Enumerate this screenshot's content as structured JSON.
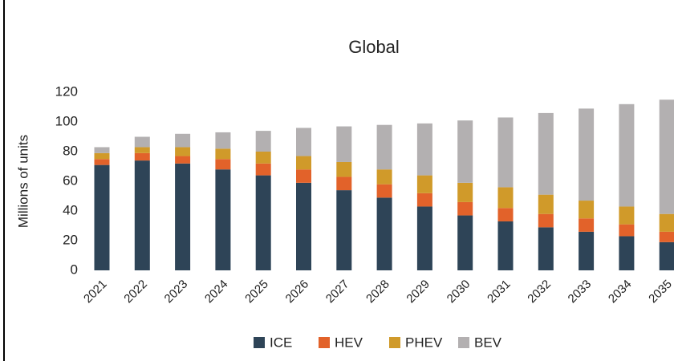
{
  "chart_data": {
    "type": "stacked_bar",
    "title": "Global",
    "y_label": "Millions of units",
    "categories": [
      "2021",
      "2022",
      "2023",
      "2024",
      "2025",
      "2026",
      "2027",
      "2028",
      "2029",
      "2030",
      "2031",
      "2032",
      "2033",
      "2034",
      "2035"
    ],
    "series": [
      {
        "name": "ICE",
        "color": "#2e4457",
        "values": [
          71,
          74,
          72,
          68,
          64,
          59,
          54,
          49,
          43,
          37,
          33,
          29,
          26,
          23,
          19
        ]
      },
      {
        "name": "HEV",
        "color": "#e2622a",
        "values": [
          4,
          5,
          5,
          7,
          8,
          9,
          9,
          9,
          9,
          9,
          9,
          9,
          9,
          8,
          7
        ]
      },
      {
        "name": "PHEV",
        "color": "#d09a2a",
        "values": [
          4,
          4,
          6,
          7,
          8,
          9,
          10,
          10,
          12,
          13,
          14,
          13,
          12,
          12,
          12
        ]
      },
      {
        "name": "BEV",
        "color": "#b3b0b1",
        "values": [
          4,
          7,
          9,
          11,
          14,
          19,
          24,
          30,
          35,
          42,
          47,
          55,
          62,
          69,
          77
        ]
      }
    ],
    "ylim": [
      0,
      120
    ],
    "yticks": [
      0,
      20,
      40,
      60,
      80,
      100,
      120
    ],
    "grid": false
  }
}
